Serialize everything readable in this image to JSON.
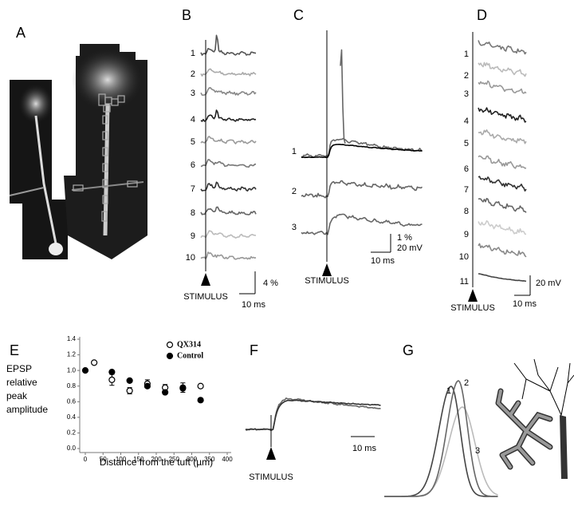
{
  "panel_labels": [
    "A",
    "B",
    "C",
    "D",
    "E",
    "F",
    "G"
  ],
  "B": {
    "trace_labels": [
      "1",
      "2",
      "3",
      "4",
      "5",
      "6",
      "7",
      "8",
      "9",
      "10"
    ],
    "stimulus": "STIMULUS",
    "scale_y": "4 %",
    "scale_x": "10 ms"
  },
  "C": {
    "trace_labels": [
      "1",
      "2",
      "3"
    ],
    "stimulus": "STIMULUS",
    "scale_y": [
      "1 %",
      "20 mV"
    ],
    "scale_x": "10 ms"
  },
  "D": {
    "trace_labels": [
      "1",
      "2",
      "3",
      "4",
      "5",
      "6",
      "7",
      "8",
      "9",
      "10",
      "11"
    ],
    "stimulus": "STIMULUS",
    "scale_y": "20 mV",
    "scale_x": "10 ms"
  },
  "F": {
    "stimulus": "STIMULUS",
    "scale_x": "10 ms"
  },
  "G": {
    "trace_labels": [
      "1",
      "2",
      "3"
    ]
  },
  "chart_data": {
    "type": "scatter",
    "y_label_lines": [
      "EPSP",
      "relative",
      "peak",
      "amplitude"
    ],
    "x_label": "Distance from the tuft (µm)",
    "xlim": [
      0,
      400
    ],
    "xticks": [
      0,
      50,
      100,
      150,
      200,
      250,
      300,
      350,
      400
    ],
    "ylim": [
      0,
      1.4
    ],
    "yticks": [
      {
        "value": 0,
        "label": "0.0"
      },
      0.2,
      0.4,
      0.6,
      0.8,
      {
        "value": 1,
        "label": "1.0"
      },
      1.2,
      1.4
    ],
    "legend": "upper right",
    "series": [
      {
        "name": "QX314",
        "color": "#000000",
        "marker": "open",
        "x": [
          25,
          75,
          125,
          175,
          225,
          275,
          325
        ],
        "values": [
          1.1,
          0.88,
          0.74,
          0.83,
          0.78,
          0.78,
          0.8
        ],
        "errors": [
          null,
          0.07,
          0.04,
          0.05,
          0.04,
          0.06,
          null
        ]
      },
      {
        "name": "Control",
        "color": "#000000",
        "marker": "filled",
        "x": [
          0,
          75,
          125,
          175,
          225,
          275,
          325
        ],
        "values": [
          1.0,
          0.98,
          0.87,
          0.8,
          0.72,
          0.77,
          0.62
        ]
      }
    ]
  }
}
